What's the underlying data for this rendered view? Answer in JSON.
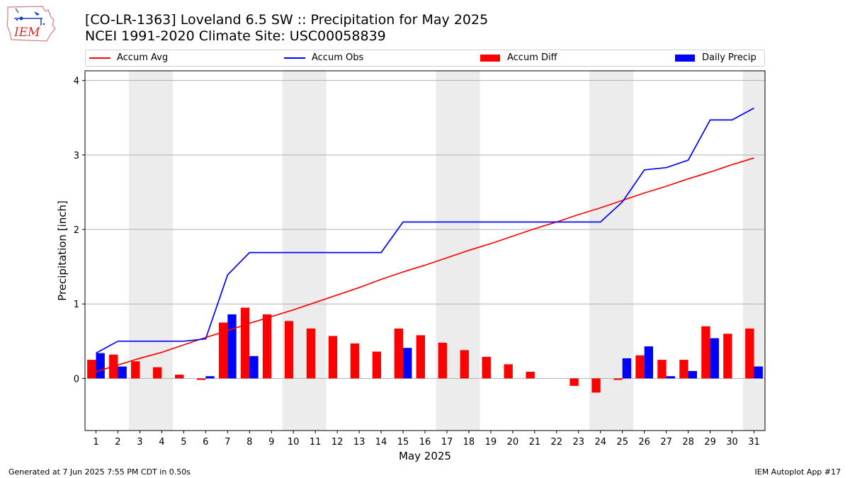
{
  "header": {
    "title_line1": "[CO-LR-1363] Loveland 6.5 SW :: Precipitation for May 2025",
    "title_line2": "NCEI 1991-2020 Climate Site: USC00058839"
  },
  "logo": {
    "text": "IEM",
    "color": "#d32f2f"
  },
  "footer": {
    "left": "Generated at 7 Jun 2025 7:55 PM CDT in 0.50s",
    "right": "IEM Autoplot App #17"
  },
  "chart_data": {
    "type": "bar",
    "xlabel": "May 2025",
    "ylabel": "Precipitation [inch]",
    "ylim": [
      -0.7,
      4.13
    ],
    "xlim": [
      0.5,
      31.5
    ],
    "yticks": [
      0,
      1,
      2,
      3,
      4
    ],
    "categories": [
      "1",
      "2",
      "3",
      "4",
      "5",
      "6",
      "7",
      "8",
      "9",
      "10",
      "11",
      "12",
      "13",
      "14",
      "15",
      "16",
      "17",
      "18",
      "19",
      "20",
      "21",
      "22",
      "23",
      "24",
      "25",
      "26",
      "27",
      "28",
      "29",
      "30",
      "31"
    ],
    "weekend_bands": [
      [
        2.5,
        4.5
      ],
      [
        9.5,
        11.5
      ],
      [
        16.5,
        18.5
      ],
      [
        23.5,
        25.5
      ],
      [
        30.5,
        31.5
      ]
    ],
    "grid": "horizontal",
    "legend_position": "top",
    "series": [
      {
        "name": "Accum Avg",
        "kind": "line",
        "color": "#ff0000",
        "values": [
          0.09,
          0.18,
          0.27,
          0.35,
          0.45,
          0.55,
          0.64,
          0.74,
          0.83,
          0.92,
          1.02,
          1.12,
          1.22,
          1.33,
          1.43,
          1.52,
          1.62,
          1.72,
          1.81,
          1.91,
          2.01,
          2.1,
          2.2,
          2.29,
          2.39,
          2.49,
          2.58,
          2.68,
          2.77,
          2.87,
          2.96
        ]
      },
      {
        "name": "Accum Obs",
        "kind": "line",
        "color": "#0000ff",
        "values": [
          0.34,
          0.5,
          0.5,
          0.5,
          0.5,
          0.53,
          1.39,
          1.69,
          1.69,
          1.69,
          1.69,
          1.69,
          1.69,
          1.69,
          2.1,
          2.1,
          2.1,
          2.1,
          2.1,
          2.1,
          2.1,
          2.1,
          2.1,
          2.1,
          2.37,
          2.8,
          2.83,
          2.93,
          3.47,
          3.47,
          3.63
        ]
      },
      {
        "name": "Accum Diff",
        "kind": "bar",
        "color": "#ff0000",
        "values": [
          0.25,
          0.32,
          0.23,
          0.15,
          0.05,
          -0.02,
          0.75,
          0.95,
          0.86,
          0.77,
          0.67,
          0.57,
          0.47,
          0.36,
          0.67,
          0.58,
          0.48,
          0.38,
          0.29,
          0.19,
          0.09,
          0.0,
          -0.1,
          -0.19,
          -0.02,
          0.31,
          0.25,
          0.25,
          0.7,
          0.6,
          0.67
        ]
      },
      {
        "name": "Daily Precip",
        "kind": "bar",
        "color": "#0000ff",
        "values": [
          0.34,
          0.16,
          0,
          0,
          0,
          0.03,
          0.86,
          0.3,
          0,
          0,
          0,
          0,
          0,
          0,
          0.41,
          0,
          0,
          0,
          0,
          0,
          0,
          0,
          0,
          0,
          0.27,
          0.43,
          0.03,
          0.1,
          0.54,
          0,
          0.16
        ]
      }
    ]
  }
}
